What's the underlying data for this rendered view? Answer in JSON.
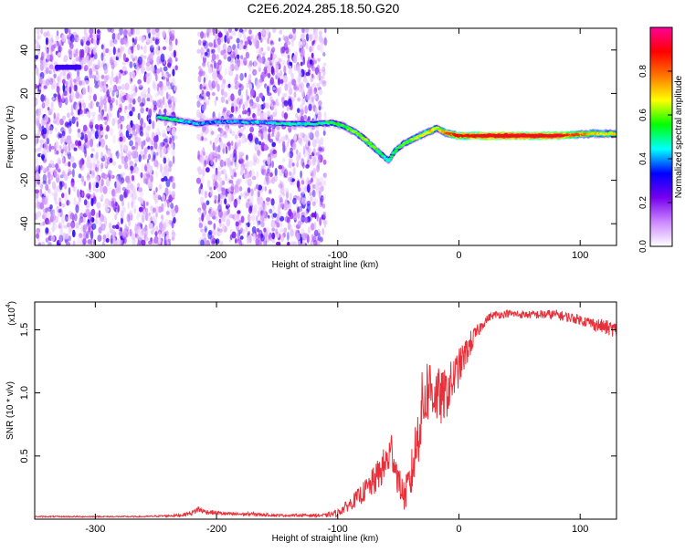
{
  "figure_title": "C2E6.2024.285.18.50.G20",
  "colorbar": {
    "label": "Normalized spectral amplitude",
    "range": [
      0,
      1
    ],
    "ticks": [
      {
        "value": 0.0,
        "label": "0.0"
      },
      {
        "value": 0.2,
        "label": "0.2"
      },
      {
        "value": 0.4,
        "label": "0.4"
      },
      {
        "value": 0.6,
        "label": "0.6"
      },
      {
        "value": 0.8,
        "label": "0.8"
      }
    ],
    "colors": [
      "#ffffff",
      "#cc88ff",
      "#7700ee",
      "#0000ff",
      "#00ffff",
      "#00ff00",
      "#ffff00",
      "#ff7700",
      "#ff0000",
      "#ff0099"
    ]
  },
  "chart_data": [
    {
      "type": "heatmap",
      "title": "",
      "xlabel": "Height of straight line (km)",
      "ylabel": "Frequency (Hz)",
      "xlim": [
        -350,
        130
      ],
      "ylim": [
        -50,
        50
      ],
      "x_ticks": [
        {
          "value": -300,
          "label": "-300"
        },
        {
          "value": -200,
          "label": "-200"
        },
        {
          "value": -100,
          "label": "-100"
        },
        {
          "value": 0,
          "label": "0"
        },
        {
          "value": 100,
          "label": "100"
        }
      ],
      "y_ticks": [
        {
          "value": -40,
          "label": "-40"
        },
        {
          "value": -20,
          "label": "-20"
        },
        {
          "value": 0,
          "label": "0"
        },
        {
          "value": 20,
          "label": "20"
        },
        {
          "value": 40,
          "label": "40"
        }
      ],
      "noise_segments": [
        [
          -350,
          -233
        ],
        [
          -215,
          -110
        ]
      ],
      "signal_track": {
        "x": [
          -248,
          -235,
          -225,
          -215,
          -200,
          -180,
          -160,
          -140,
          -120,
          -105,
          -95,
          -85,
          -78,
          -70,
          -64,
          -58,
          -52,
          -45,
          -38,
          -30,
          -22,
          -18,
          -12,
          -5,
          0,
          20,
          40,
          60,
          80,
          95,
          110,
          130
        ],
        "y": [
          9,
          8,
          7,
          6,
          7,
          7,
          6.5,
          6,
          6,
          6.5,
          5,
          2,
          -1,
          -5,
          -8,
          -11,
          -6,
          -3,
          -1,
          1,
          3,
          4,
          2,
          1,
          0.5,
          0.5,
          0.5,
          0.5,
          0.5,
          1,
          1.5,
          1.5
        ],
        "amplitude": [
          0.35,
          0.4,
          0.3,
          0.3,
          0.25,
          0.3,
          0.3,
          0.35,
          0.35,
          0.4,
          0.45,
          0.5,
          0.5,
          0.45,
          0.4,
          0.35,
          0.4,
          0.45,
          0.5,
          0.55,
          0.6,
          0.5,
          0.65,
          0.7,
          0.75,
          0.85,
          0.9,
          0.85,
          0.85,
          0.7,
          0.6,
          0.55
        ]
      }
    },
    {
      "type": "line",
      "title": "",
      "xlabel": "Height of straight line (km)",
      "ylabel": "SNR (10 * v/v)",
      "y_multiplier_label": "(x10",
      "y_multiplier_exponent": "4",
      "xlim": [
        -350,
        130
      ],
      "ylim": [
        0,
        1.72
      ],
      "x_ticks": [
        {
          "value": -300,
          "label": "-300"
        },
        {
          "value": -200,
          "label": "-200"
        },
        {
          "value": -100,
          "label": "-100"
        },
        {
          "value": 0,
          "label": "0"
        },
        {
          "value": 100,
          "label": "100"
        }
      ],
      "y_ticks": [
        {
          "value": 0.5,
          "label": "0.5"
        },
        {
          "value": 1.0,
          "label": "1.0"
        },
        {
          "value": 1.5,
          "label": "1.5"
        }
      ],
      "series_color": "#e8303a",
      "series": [
        {
          "x": [
            -350,
            -320,
            -290,
            -260,
            -230,
            -220,
            -215,
            -210,
            -190,
            -170,
            -150,
            -130,
            -110,
            -100,
            -90,
            -80,
            -70,
            -60,
            -55,
            -50,
            -45,
            -40,
            -35,
            -30,
            -25,
            -20,
            -15,
            -10,
            -5,
            0,
            5,
            10,
            15,
            20,
            25,
            30,
            35,
            40,
            50,
            60,
            70,
            80,
            90,
            100,
            110,
            120,
            130
          ],
          "y": [
            0.02,
            0.02,
            0.02,
            0.02,
            0.03,
            0.05,
            0.08,
            0.06,
            0.04,
            0.04,
            0.03,
            0.03,
            0.03,
            0.05,
            0.12,
            0.2,
            0.3,
            0.45,
            0.55,
            0.3,
            0.18,
            0.3,
            0.6,
            0.9,
            1.05,
            1.0,
            0.95,
            1.0,
            1.1,
            1.2,
            1.3,
            1.4,
            1.48,
            1.55,
            1.6,
            1.62,
            1.62,
            1.63,
            1.62,
            1.62,
            1.62,
            1.62,
            1.6,
            1.58,
            1.55,
            1.52,
            1.5
          ],
          "noise": [
            0.005,
            0.005,
            0.005,
            0.005,
            0.01,
            0.02,
            0.03,
            0.02,
            0.015,
            0.015,
            0.01,
            0.01,
            0.015,
            0.03,
            0.05,
            0.08,
            0.12,
            0.15,
            0.18,
            0.12,
            0.12,
            0.18,
            0.25,
            0.3,
            0.28,
            0.25,
            0.22,
            0.2,
            0.18,
            0.15,
            0.12,
            0.1,
            0.06,
            0.04,
            0.03,
            0.03,
            0.03,
            0.03,
            0.03,
            0.03,
            0.04,
            0.04,
            0.04,
            0.04,
            0.05,
            0.06,
            0.06
          ]
        }
      ]
    }
  ]
}
